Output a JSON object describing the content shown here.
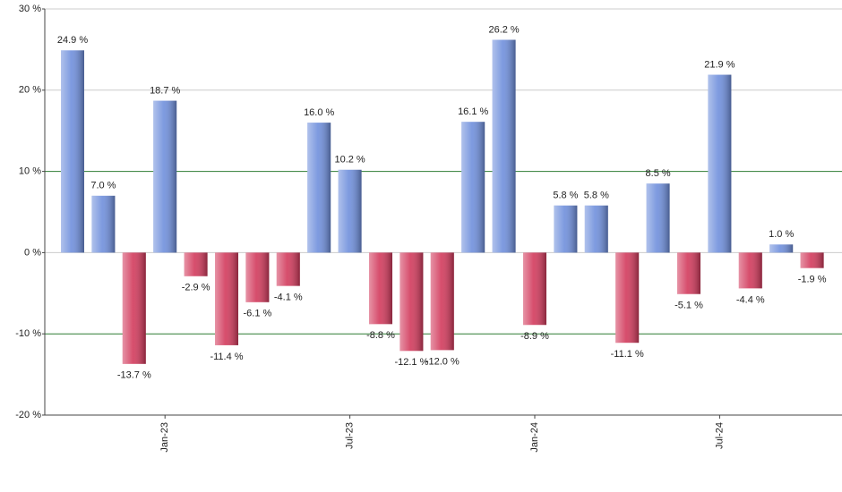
{
  "chart_data": {
    "type": "bar",
    "categories": [
      null,
      null,
      null,
      "Jan-23",
      null,
      null,
      null,
      null,
      null,
      "Jul-23",
      null,
      null,
      null,
      null,
      null,
      "Jan-24",
      null,
      null,
      null,
      null,
      null,
      "Jul-24",
      null,
      null,
      null
    ],
    "values": [
      24.9,
      7.0,
      -13.7,
      18.7,
      -2.9,
      -11.4,
      -6.1,
      -4.1,
      16.0,
      10.2,
      -8.8,
      -12.1,
      -12.0,
      16.1,
      26.2,
      -8.9,
      5.8,
      5.8,
      -11.1,
      8.5,
      -5.1,
      21.9,
      -4.4,
      1.0,
      -1.9
    ],
    "value_labels": [
      "24.9 %",
      "7.0 %",
      "-13.7 %",
      "18.7 %",
      "-2.9 %",
      "-11.4 %",
      "-6.1 %",
      "-4.1 %",
      "16.0 %",
      "10.2 %",
      "-8.8 %",
      "-12.1 %",
      "-12.0 %",
      "16.1 %",
      "26.2 %",
      "-8.9 %",
      "5.8 %",
      "5.8 %",
      "-11.1 %",
      "8.5 %",
      "-5.1 %",
      "21.9 %",
      "-4.4 %",
      "1.0 %",
      "-1.9 %"
    ],
    "color_positive": "#6f8fdc",
    "color_negative": "#d23a5c",
    "ylim": [
      -20,
      30
    ],
    "yticks": [
      {
        "value": -20,
        "label": "-20 %"
      },
      {
        "value": -10,
        "label": "-10 %"
      },
      {
        "value": 0,
        "label": "0 %"
      },
      {
        "value": 10,
        "label": "10 %"
      },
      {
        "value": 20,
        "label": "20 %"
      },
      {
        "value": 30,
        "label": "30 %"
      }
    ],
    "grid": true,
    "grid_colors": [
      "#cccccc",
      "#2e7d32",
      "#cccccc",
      "#2e7d32",
      "#cccccc",
      "#cccccc"
    ]
  }
}
